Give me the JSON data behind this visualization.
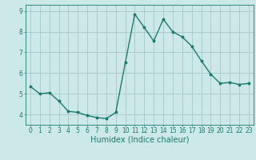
{
  "x": [
    0,
    1,
    2,
    3,
    4,
    5,
    6,
    7,
    8,
    9,
    10,
    11,
    12,
    13,
    14,
    15,
    16,
    17,
    18,
    19,
    20,
    21,
    22,
    23
  ],
  "y": [
    5.35,
    5.0,
    5.05,
    4.65,
    4.15,
    4.1,
    3.95,
    3.85,
    3.8,
    4.1,
    6.5,
    8.85,
    8.2,
    7.55,
    8.6,
    8.0,
    7.75,
    7.3,
    6.6,
    5.95,
    5.5,
    5.55,
    5.45,
    5.5
  ],
  "line_color": "#1a7a6e",
  "marker": "*",
  "marker_size": 2.5,
  "bg_color": "#cce8e8",
  "grid_color": "#aacccc",
  "xlabel": "Humidex (Indice chaleur)",
  "ylim": [
    3.5,
    9.3
  ],
  "xlim": [
    -0.5,
    23.5
  ],
  "yticks": [
    4,
    5,
    6,
    7,
    8,
    9
  ],
  "xticks": [
    0,
    1,
    2,
    3,
    4,
    5,
    6,
    7,
    8,
    9,
    10,
    11,
    12,
    13,
    14,
    15,
    16,
    17,
    18,
    19,
    20,
    21,
    22,
    23
  ],
  "tick_fontsize": 5.5,
  "xlabel_fontsize": 7.0,
  "line_width": 1.0
}
